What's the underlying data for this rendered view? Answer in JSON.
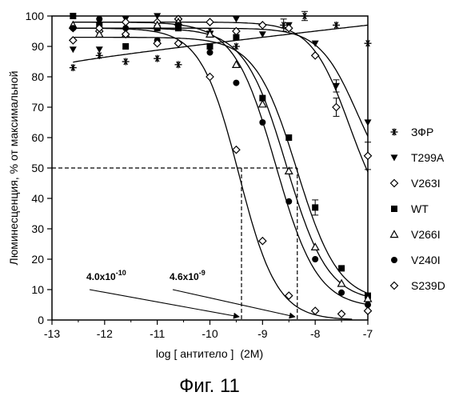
{
  "chart_data": {
    "type": "scatter",
    "ylabel": "Люминесценция, % от максимальной",
    "xlabel_main": "log [ антитело ]",
    "xlabel_unit": "(2M)",
    "xlim": [
      -13,
      -7
    ],
    "ylim": [
      0,
      100
    ],
    "x_ticks": [
      -13,
      -12,
      -11,
      -10,
      -9,
      -8,
      -7
    ],
    "y_ticks": [
      0,
      10,
      20,
      30,
      40,
      50,
      60,
      70,
      80,
      90,
      100
    ],
    "grid": false,
    "legend_position": "right",
    "series": [
      {
        "name": "ЗФР",
        "marker": "asterisk",
        "x": [
          -12.6,
          -12.1,
          -11.6,
          -11.0,
          -10.6,
          -10.0,
          -9.5,
          -8.6,
          -8.2,
          -7.6,
          -7.0
        ],
        "y": [
          83,
          87,
          85,
          86,
          84,
          95,
          90,
          97,
          100,
          97,
          91
        ]
      },
      {
        "name": "T299A",
        "marker": "triangle-down",
        "x": [
          -12.6,
          -12.1,
          -11.6,
          -11.0,
          -10.6,
          -10.0,
          -9.5,
          -9.0,
          -8.5,
          -8.0,
          -7.6,
          -7.0
        ],
        "y": [
          89,
          89,
          99,
          100,
          98,
          94,
          99,
          94,
          97,
          91,
          77,
          65
        ]
      },
      {
        "name": "V263I",
        "marker": "diamond-open",
        "x": [
          -12.6,
          -12.1,
          -11.6,
          -11.0,
          -10.6,
          -10.0,
          -9.5,
          -9.0,
          -8.5,
          -8.0,
          -7.6,
          -7.0
        ],
        "y": [
          96,
          95,
          98,
          98,
          99,
          98,
          95,
          97,
          96,
          87,
          70,
          54
        ]
      },
      {
        "name": "WT",
        "marker": "square",
        "x": [
          -12.6,
          -12.1,
          -11.6,
          -11.0,
          -10.6,
          -10.0,
          -9.5,
          -9.0,
          -8.5,
          -8.0,
          -7.5,
          -7.0
        ],
        "y": [
          100,
          97,
          90,
          96,
          96,
          90,
          93,
          73,
          60,
          37,
          17,
          8
        ]
      },
      {
        "name": "V266I",
        "marker": "triangle-up",
        "x": [
          -12.6,
          -12.1,
          -11.6,
          -11.0,
          -10.6,
          -10.0,
          -9.5,
          -9.0,
          -8.5,
          -8.0,
          -7.5,
          -7.0
        ],
        "y": [
          97,
          94,
          94,
          97,
          98,
          94,
          84,
          71,
          49,
          24,
          12,
          7
        ]
      },
      {
        "name": "V240I",
        "marker": "circle-filled",
        "x": [
          -12.6,
          -12.1,
          -11.6,
          -11.0,
          -10.6,
          -10.0,
          -9.5,
          -9.0,
          -8.5,
          -8.0,
          -7.5,
          -7.0
        ],
        "y": [
          96,
          99,
          96,
          92,
          97,
          88,
          78,
          65,
          39,
          20,
          9,
          5
        ]
      },
      {
        "name": "S239D",
        "marker": "diamond-open",
        "x": [
          -12.6,
          -12.1,
          -11.6,
          -11.0,
          -10.6,
          -10.0,
          -9.5,
          -9.0,
          -8.5,
          -8.0,
          -7.5,
          -7.0
        ],
        "y": [
          92,
          96,
          94,
          91,
          91,
          80,
          56,
          26,
          8,
          3,
          2,
          3
        ]
      }
    ],
    "reference_line_y": 50,
    "reference_lines_x": [
      -9.4,
      -8.34
    ],
    "annotations": [
      {
        "base": "4.0x10",
        "exp": "-10",
        "x": -9.4,
        "y": 0
      },
      {
        "base": "4.6x10",
        "exp": "-9",
        "x": -8.34,
        "y": 0
      }
    ]
  },
  "figure_caption": "Фиг. 11"
}
